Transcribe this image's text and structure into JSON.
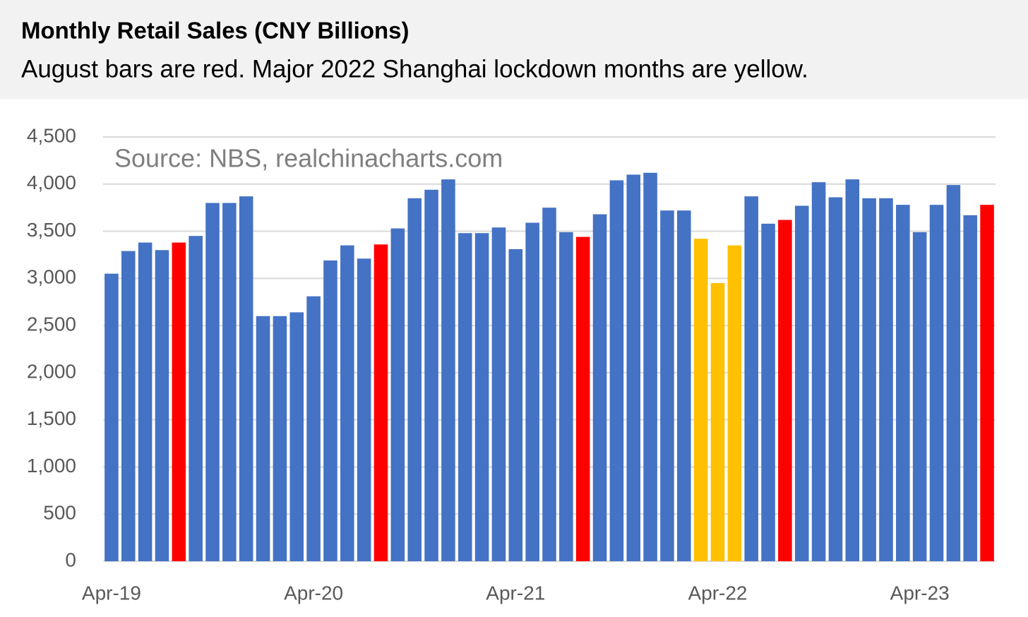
{
  "chart_data": {
    "type": "bar",
    "title": "Monthly Retail Sales (CNY Billions)",
    "subtitle": "August bars are red. Major 2022 Shanghai lockdown months are yellow.",
    "annotation": "Source: NBS, realchinacharts.com",
    "categories": [
      "Apr-19",
      null,
      null,
      null,
      null,
      null,
      null,
      null,
      null,
      null,
      null,
      null,
      "Apr-20",
      null,
      null,
      null,
      null,
      null,
      null,
      null,
      null,
      null,
      null,
      null,
      "Apr-21",
      null,
      null,
      null,
      null,
      null,
      null,
      null,
      null,
      null,
      null,
      null,
      "Apr-22",
      null,
      null,
      null,
      null,
      null,
      null,
      null,
      null,
      null,
      null,
      null,
      "Apr-23",
      null,
      null,
      null,
      null
    ],
    "values": [
      3050,
      3290,
      3380,
      3300,
      3380,
      3450,
      3800,
      3800,
      3870,
      2600,
      2600,
      2640,
      2810,
      3190,
      3350,
      3210,
      3360,
      3530,
      3850,
      3940,
      4050,
      3480,
      3480,
      3540,
      3310,
      3590,
      3750,
      3490,
      3440,
      3680,
      4040,
      4100,
      4120,
      3720,
      3720,
      3420,
      2950,
      3350,
      3870,
      3580,
      3620,
      3770,
      4020,
      3860,
      4050,
      3850,
      3850,
      3780,
      3490,
      3780,
      3990,
      3670,
      3780
    ],
    "colors": [
      "#4472c4",
      "#4472c4",
      "#4472c4",
      "#4472c4",
      "#ff0000",
      "#4472c4",
      "#4472c4",
      "#4472c4",
      "#4472c4",
      "#4472c4",
      "#4472c4",
      "#4472c4",
      "#4472c4",
      "#4472c4",
      "#4472c4",
      "#4472c4",
      "#ff0000",
      "#4472c4",
      "#4472c4",
      "#4472c4",
      "#4472c4",
      "#4472c4",
      "#4472c4",
      "#4472c4",
      "#4472c4",
      "#4472c4",
      "#4472c4",
      "#4472c4",
      "#ff0000",
      "#4472c4",
      "#4472c4",
      "#4472c4",
      "#4472c4",
      "#4472c4",
      "#4472c4",
      "#ffc000",
      "#ffc000",
      "#ffc000",
      "#4472c4",
      "#4472c4",
      "#ff0000",
      "#4472c4",
      "#4472c4",
      "#4472c4",
      "#4472c4",
      "#4472c4",
      "#4472c4",
      "#4472c4",
      "#4472c4",
      "#4472c4",
      "#4472c4",
      "#4472c4",
      "#ff0000"
    ],
    "ylim": [
      0,
      4500
    ],
    "yticks": [
      0,
      500,
      {
        "value": 1000,
        "label": "1,000"
      },
      {
        "value": 1500,
        "label": "1,500"
      },
      {
        "value": 2000,
        "label": "2,000"
      },
      {
        "value": 2500,
        "label": "2,500"
      },
      {
        "value": 3000,
        "label": "3,000"
      },
      {
        "value": 3500,
        "label": "3,500"
      },
      {
        "value": 4000,
        "label": "4,000"
      },
      {
        "value": 4500,
        "label": "4,500"
      }
    ],
    "grid": true
  }
}
